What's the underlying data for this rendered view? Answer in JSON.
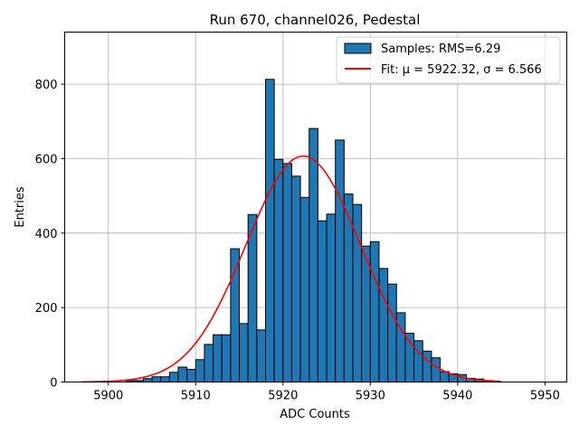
{
  "chart_data": {
    "type": "bar",
    "title": "Run 670, channel026, Pedestal",
    "xlabel": "ADC Counts",
    "ylabel": "Entries",
    "xlim": [
      5895,
      5952.5
    ],
    "ylim": [
      0,
      940
    ],
    "xticks": [
      5900,
      5910,
      5920,
      5930,
      5940,
      5950
    ],
    "yticks": [
      0,
      200,
      400,
      600,
      800
    ],
    "grid": true,
    "legend_position": "top-right",
    "histogram": {
      "name": "Samples: RMS=6.29",
      "color": "#1f77b4",
      "bin_width": 1,
      "bin_starts": [
        5902,
        5903,
        5904,
        5905,
        5906,
        5907,
        5908,
        5909,
        5910,
        5911,
        5912,
        5913,
        5914,
        5915,
        5916,
        5917,
        5918,
        5919,
        5920,
        5921,
        5922,
        5923,
        5924,
        5925,
        5926,
        5927,
        5928,
        5929,
        5930,
        5931,
        5932,
        5933,
        5934,
        5935,
        5936,
        5937,
        5938,
        5939,
        5940,
        5941,
        5942,
        5943
      ],
      "counts": [
        4,
        4,
        9,
        14,
        14,
        26,
        40,
        34,
        60,
        101,
        127,
        127,
        358,
        157,
        450,
        140,
        813,
        598,
        587,
        553,
        496,
        681,
        433,
        451,
        650,
        505,
        477,
        365,
        377,
        305,
        263,
        186,
        131,
        111,
        83,
        65,
        28,
        22,
        20,
        10,
        8,
        4
      ]
    },
    "fit": {
      "name": "Fit: μ = 5922.32, σ = 6.566",
      "color": "#ff0000",
      "type": "gaussian",
      "mu": 5922.32,
      "sigma": 6.566,
      "amplitude": 607,
      "x_range": [
        5897,
        5945
      ]
    }
  }
}
